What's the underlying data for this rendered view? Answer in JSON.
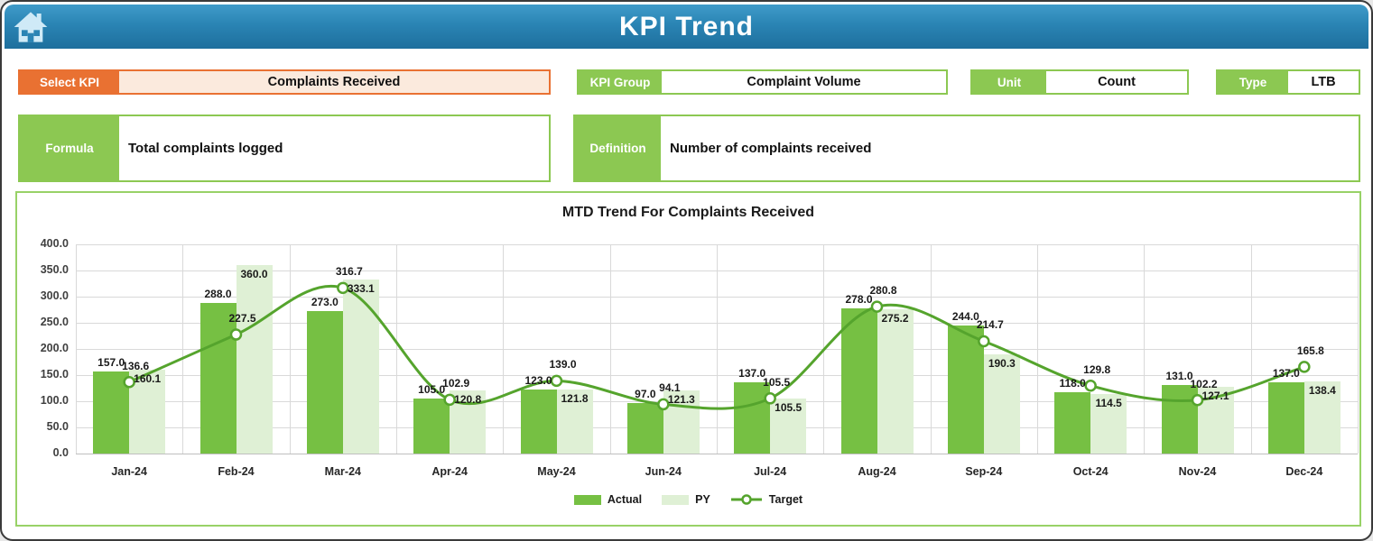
{
  "header": {
    "title": "KPI Trend",
    "home_icon": "home-icon"
  },
  "colors": {
    "header_blue_top": "#3f9bc9",
    "header_blue_bottom": "#1e6f9d",
    "accent_orange": "#E97132",
    "orange_field_bg": "#FBEADD",
    "accent_green": "#8CC852",
    "chart_border": "#98D267",
    "actual_bar": "#76C043",
    "py_bar": "#DFF0D5",
    "target_line": "#55A42D",
    "gridline": "#D9D9D9"
  },
  "controls": {
    "select_kpi": {
      "label": "Select KPI",
      "value": "Complaints Received"
    },
    "kpi_group": {
      "label": "KPI Group",
      "value": "Complaint Volume"
    },
    "unit": {
      "label": "Unit",
      "value": "Count"
    },
    "type": {
      "label": "Type",
      "value": "LTB"
    },
    "formula": {
      "label": "Formula",
      "value": "Total complaints logged"
    },
    "definition": {
      "label": "Definition",
      "value": "Number of complaints received"
    }
  },
  "chart_data": {
    "type": "bar",
    "subtype": "combo-bar-line",
    "title": "MTD Trend For Complaints Received",
    "categories": [
      "Jan-24",
      "Feb-24",
      "Mar-24",
      "Apr-24",
      "May-24",
      "Jun-24",
      "Jul-24",
      "Aug-24",
      "Sep-24",
      "Oct-24",
      "Nov-24",
      "Dec-24"
    ],
    "series": [
      {
        "name": "Actual",
        "type": "bar",
        "color": "#76C043",
        "values": [
          157.0,
          288.0,
          273.0,
          105.0,
          123.0,
          97.0,
          137.0,
          278.0,
          244.0,
          118.0,
          131.0,
          137.0
        ]
      },
      {
        "name": "PY",
        "type": "bar",
        "color": "#DFF0D5",
        "values": [
          160.1,
          360.0,
          333.1,
          120.8,
          121.8,
          121.3,
          105.5,
          275.2,
          190.3,
          114.5,
          127.1,
          138.4
        ]
      },
      {
        "name": "Target",
        "type": "line",
        "color": "#55A42D",
        "marker": "circle",
        "values": [
          136.6,
          227.5,
          316.7,
          102.9,
          139.0,
          94.1,
          105.5,
          280.8,
          214.7,
          129.8,
          102.2,
          165.8
        ]
      }
    ],
    "xlabel": "",
    "ylabel": "",
    "ylim": [
      0,
      400
    ],
    "ytick_step": 50,
    "ytick_format": "one_decimal",
    "grid": true,
    "legend_position": "bottom"
  }
}
